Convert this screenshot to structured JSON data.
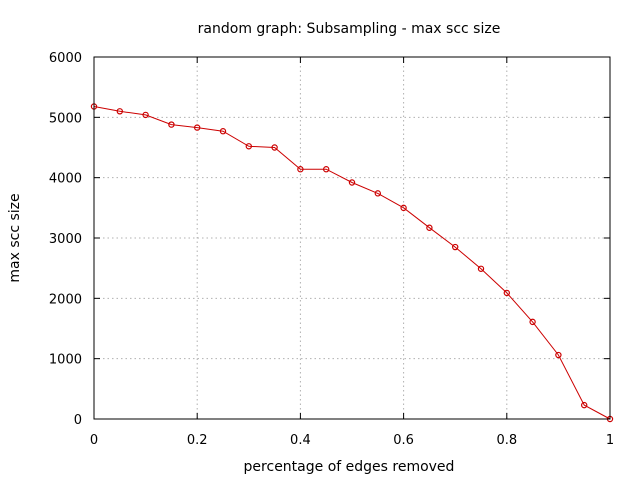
{
  "chart_data": {
    "type": "line",
    "title": "random graph: Subsampling - max scc size",
    "xlabel": "percentage of edges removed",
    "ylabel": "max scc size",
    "xlim": [
      0,
      1
    ],
    "ylim": [
      0,
      6000
    ],
    "xticks": [
      0,
      0.2,
      0.4,
      0.6,
      0.8,
      1
    ],
    "xtick_labels": [
      "0",
      "0.2",
      "0.4",
      "0.6",
      "0.8",
      "1"
    ],
    "yticks": [
      0,
      1000,
      2000,
      3000,
      4000,
      5000,
      6000
    ],
    "ytick_labels": [
      "0",
      "1000",
      "2000",
      "3000",
      "4000",
      "5000",
      "6000"
    ],
    "grid": true,
    "series": [
      {
        "color": "#cc0000",
        "marker": "circle",
        "x": [
          0,
          0.05,
          0.1,
          0.15,
          0.2,
          0.25,
          0.3,
          0.35,
          0.4,
          0.45,
          0.5,
          0.55,
          0.6,
          0.65,
          0.7,
          0.75,
          0.8,
          0.85,
          0.9,
          0.95,
          1
        ],
        "y": [
          5180,
          5100,
          5040,
          4880,
          4830,
          4770,
          4520,
          4500,
          4140,
          4140,
          3920,
          3740,
          3500,
          3170,
          2850,
          2490,
          2090,
          1610,
          1060,
          230,
          0
        ]
      }
    ]
  }
}
